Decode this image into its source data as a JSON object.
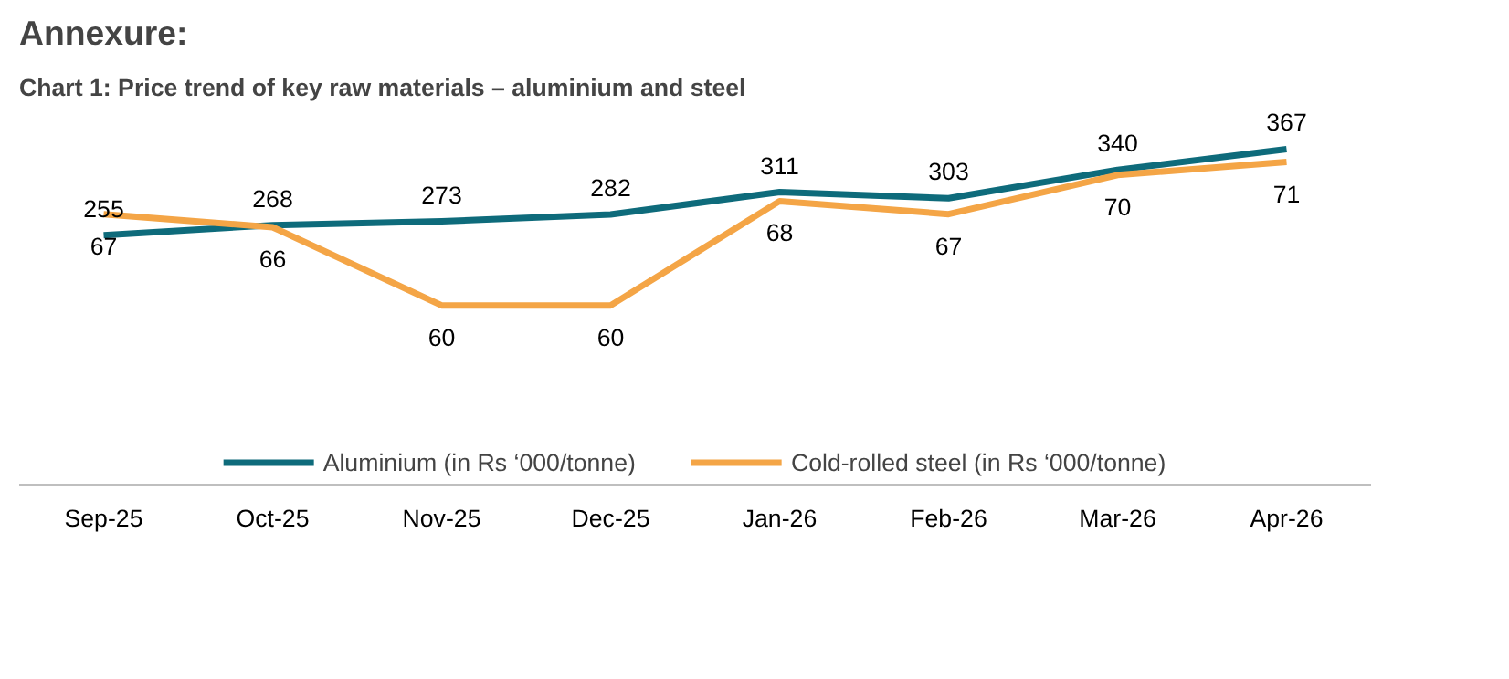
{
  "chart_data": {
    "type": "line",
    "title": "Annexure:",
    "subtitle": "Chart 1: Price trend of key raw materials – aluminium and steel",
    "categories": [
      "Sep-25",
      "Oct-25",
      "Nov-25",
      "Dec-25",
      "Jan-26",
      "Feb-26",
      "Mar-26",
      "Apr-26"
    ],
    "series": [
      {
        "name": "Aluminium (in Rs ‘000/tonne)",
        "color": "#0e6b7b",
        "values": [
          255,
          268,
          273,
          282,
          311,
          303,
          340,
          367
        ]
      },
      {
        "name": "Cold-rolled steel (in Rs ‘000/tonne)",
        "color": "#f4a546",
        "axis": "y2",
        "values": [
          67,
          66,
          60,
          60,
          68,
          67,
          70,
          71
        ]
      }
    ],
    "tick_labels": "x",
    "grid": false,
    "legend": "bottom",
    "data_labels": true
  }
}
